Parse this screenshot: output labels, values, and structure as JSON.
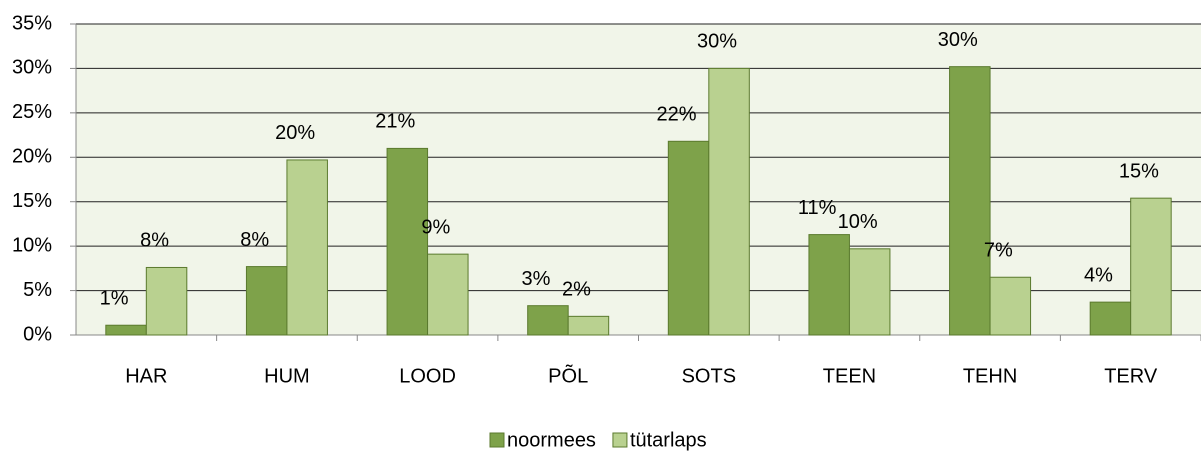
{
  "chart_data": {
    "type": "bar",
    "categories": [
      "HAR",
      "HUM",
      "LOOD",
      "PÕL",
      "SOTS",
      "TEEN",
      "TEHN",
      "TERV"
    ],
    "series": [
      {
        "name": "noormees",
        "color": "#7ea24a",
        "values": [
          1.1,
          7.7,
          21.0,
          3.3,
          21.8,
          11.3,
          30.2,
          3.7
        ],
        "value_labels": [
          "1%",
          "8%",
          "21%",
          "3%",
          "22%",
          "11%",
          "30%",
          "4%"
        ]
      },
      {
        "name": "tütarlaps",
        "color": "#b9d190",
        "values": [
          7.6,
          19.7,
          9.1,
          2.1,
          30.0,
          9.7,
          6.5,
          15.4
        ],
        "value_labels": [
          "8%",
          "20%",
          "9%",
          "2%",
          "30%",
          "10%",
          "7%",
          "15%"
        ]
      }
    ],
    "ylim": [
      0,
      35
    ],
    "yticks": [
      {
        "value": 0,
        "label": "0%"
      },
      {
        "value": 5,
        "label": "5%"
      },
      {
        "value": 10,
        "label": "10%"
      },
      {
        "value": 15,
        "label": "15%"
      },
      {
        "value": 20,
        "label": "20%"
      },
      {
        "value": 25,
        "label": "25%"
      },
      {
        "value": 30,
        "label": "30%"
      },
      {
        "value": 35,
        "label": "35%"
      }
    ],
    "grid": true
  }
}
